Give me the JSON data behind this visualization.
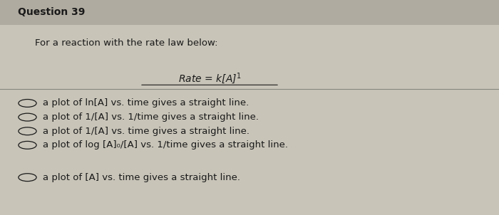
{
  "title": "Question 39",
  "background_color": "#c8c4b8",
  "header_bg": "#b0aba0",
  "question_text": "For a reaction with the rate law below:",
  "rate_law": "Rate = k[A]$^1$",
  "options": [
    "a plot of ln[A] vs. time gives a straight line.",
    "a plot of 1/[A] vs. 1/time gives a straight line.",
    "a plot of 1/[A] vs. time gives a straight line.",
    "a plot of log [A]₀/[A] vs. 1/time gives a straight line.",
    "a plot of [A] vs. time gives a straight line."
  ],
  "separator_after": [
    3
  ],
  "title_fontsize": 10,
  "body_fontsize": 9.5,
  "text_color": "#1a1a1a"
}
